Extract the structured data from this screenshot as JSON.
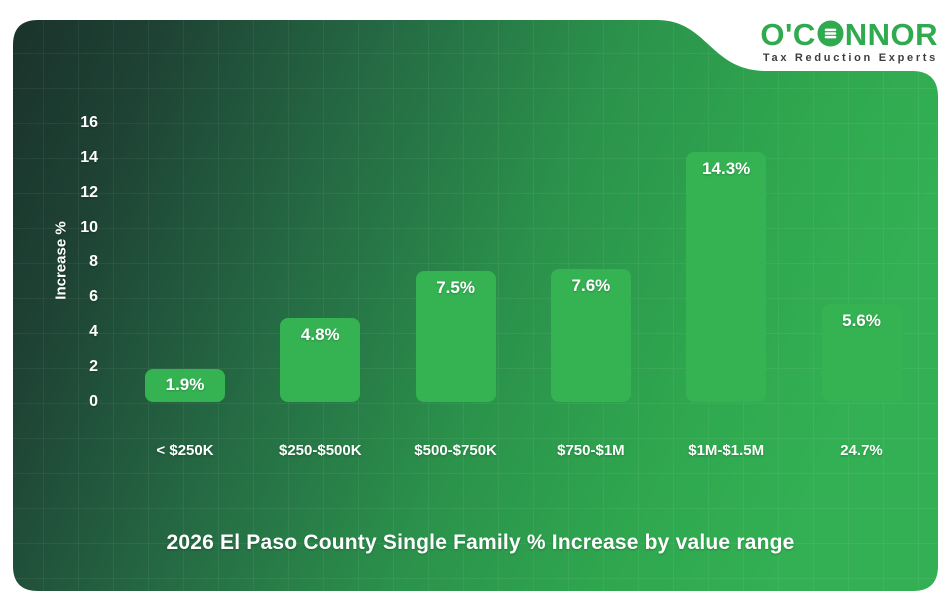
{
  "logo": {
    "wordmark_pre": "O'C",
    "wordmark_post": "NNOR",
    "tagline": "Tax Reduction Experts",
    "brand_green": "#2faa4f",
    "tagline_color": "#3e3e3e"
  },
  "chart_data": {
    "type": "bar",
    "title": "2026 El Paso County Single Family % Increase by value range",
    "ylabel": "Increase %",
    "xlabel": "",
    "categories": [
      "< $250K",
      "$250-$500K",
      "$500-$750K",
      "$750-$1M",
      "$1M-$1.5M",
      "24.7%"
    ],
    "values": [
      1.9,
      4.8,
      7.5,
      7.6,
      14.3,
      5.6
    ],
    "bar_labels": [
      "1.9%",
      "4.8%",
      "7.5%",
      "7.6%",
      "14.3%",
      "5.6%"
    ],
    "yticks": [
      0,
      2,
      4,
      6,
      8,
      10,
      12,
      14,
      16
    ],
    "ylim": [
      0,
      16
    ],
    "grid": true,
    "legend": false,
    "bar_color": "#35b353",
    "label_color": "#ffffff",
    "background_dark": "#1c372e",
    "background_bright": "#33b053"
  }
}
